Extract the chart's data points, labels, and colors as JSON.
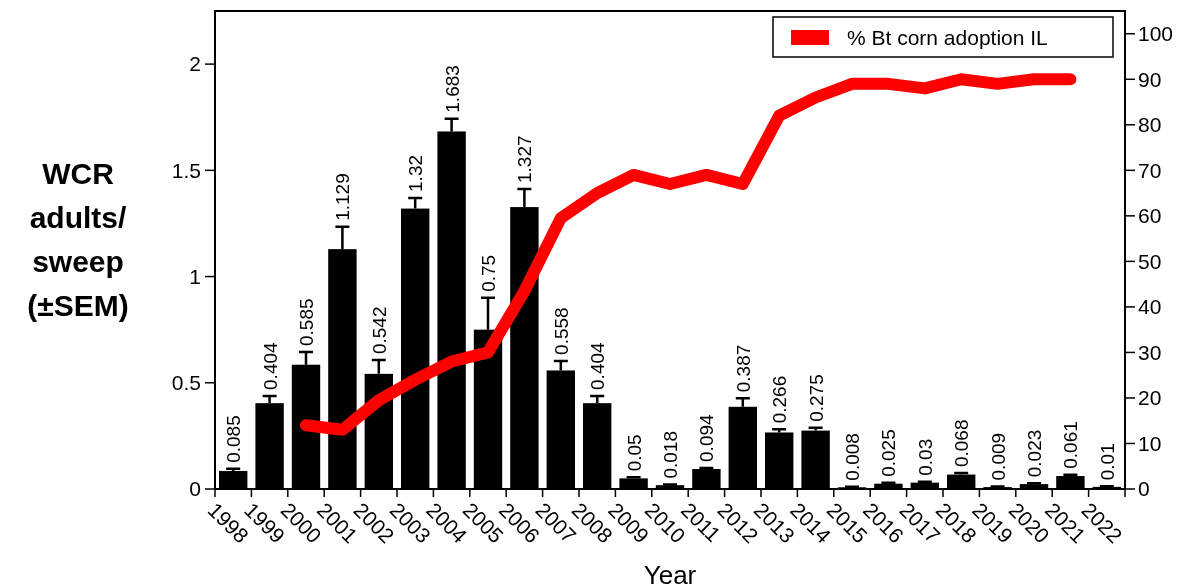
{
  "chart_data": {
    "type": "bar",
    "xlabel": "Year",
    "ylabel": "WCR adults/ sweep (±SEM)",
    "categories": [
      "1998",
      "1999",
      "2000",
      "2001",
      "2002",
      "2003",
      "2004",
      "2005",
      "2006",
      "2007",
      "2008",
      "2009",
      "2010",
      "2011",
      "2012",
      "2013",
      "2014",
      "2015",
      "2016",
      "2017",
      "2018",
      "2019",
      "2020",
      "2021",
      "2022"
    ],
    "series": [
      {
        "color": "#000000",
        "value_labels": [
          "0.085",
          "0.404",
          "0.585",
          "1.129",
          "0.542",
          "1.32",
          "1.683",
          "0.75",
          "1.327",
          "0.558",
          "0.404",
          "0.05",
          "0.018",
          "0.094",
          "0.387",
          "0.266",
          "0.275",
          "0.008",
          "0.025",
          "0.03",
          "0.068",
          "0.009",
          "0.023",
          "0.061",
          "0.01"
        ],
        "values": [
          0.085,
          0.404,
          0.585,
          1.129,
          0.542,
          1.32,
          1.683,
          0.75,
          1.327,
          0.558,
          0.404,
          0.05,
          0.018,
          0.094,
          0.387,
          0.266,
          0.275,
          0.008,
          0.025,
          0.03,
          0.068,
          0.009,
          0.023,
          0.061,
          0.01
        ],
        "errors": [
          [
            0.085,
            0.095
          ],
          [
            0.404,
            0.438
          ],
          [
            0.585,
            0.645
          ],
          [
            1.129,
            1.234
          ],
          [
            0.542,
            0.607
          ],
          [
            1.32,
            1.37
          ],
          [
            1.683,
            1.743
          ],
          [
            0.75,
            0.9
          ],
          [
            1.327,
            1.412
          ],
          [
            0.558,
            0.603
          ],
          [
            0.404,
            0.438
          ],
          [
            0.05,
            0.055
          ],
          [
            0.018,
            0.021
          ],
          [
            0.094,
            0.099
          ],
          [
            0.387,
            0.427
          ],
          [
            0.266,
            0.281
          ],
          [
            0.275,
            0.288
          ],
          [
            0.008,
            0.011
          ],
          [
            0.025,
            0.029
          ],
          [
            0.03,
            0.034
          ],
          [
            0.068,
            0.075
          ],
          [
            0.009,
            0.012
          ],
          [
            0.023,
            0.027
          ],
          [
            0.061,
            0.067
          ],
          [
            0.01,
            0.013
          ]
        ]
      },
      {
        "type": "line",
        "name": "% Bt corn adoption IL",
        "color": "#ff0000",
        "axis": "y2",
        "values": [
          null,
          null,
          14,
          13,
          19.5,
          24,
          28,
          30,
          43.5,
          59.5,
          65,
          69,
          67,
          69,
          67,
          82,
          86,
          89,
          89,
          88,
          90,
          89,
          90,
          90,
          null
        ]
      }
    ],
    "ylim": [
      0,
      2.25
    ],
    "yticks": [
      0,
      {
        "value": 0.5,
        "label": "0.5"
      },
      1,
      {
        "value": 1.5,
        "label": "1.5"
      },
      2
    ],
    "y2lim": [
      0,
      105
    ],
    "y2ticks": [
      0,
      10,
      20,
      30,
      40,
      50,
      60,
      70,
      80,
      90,
      100
    ],
    "legend": "top right",
    "grid": false,
    "marker": "none",
    "line_style": "solid"
  }
}
